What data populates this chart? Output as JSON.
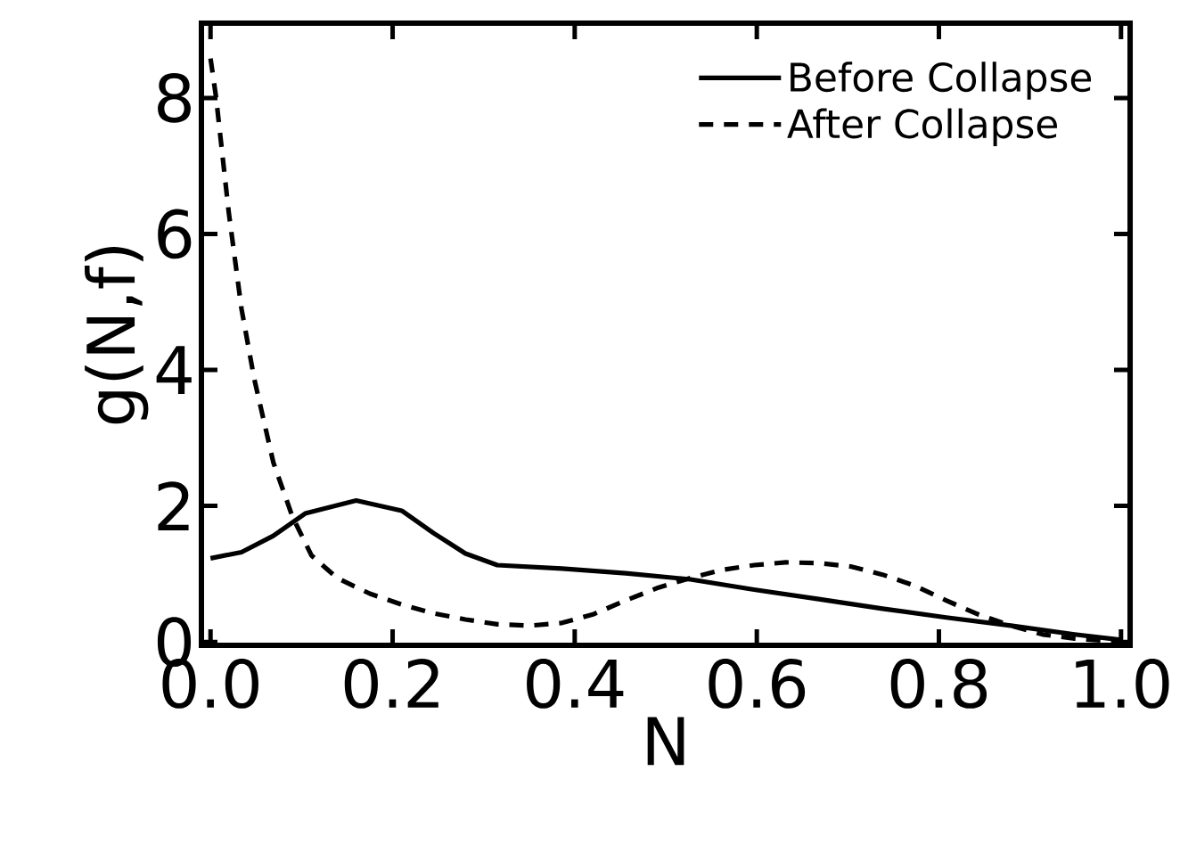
{
  "chart_data": {
    "type": "line",
    "xlabel": "N",
    "ylabel": "g(N,f)",
    "xlim": [
      -0.01,
      1.01
    ],
    "ylim": [
      -0.05,
      9.1
    ],
    "xticks": [
      {
        "value": 0,
        "label": "0.0"
      },
      {
        "value": 0.2,
        "label": "0.2"
      },
      {
        "value": 0.4,
        "label": "0.4"
      },
      {
        "value": 0.6,
        "label": "0.6"
      },
      {
        "value": 0.8,
        "label": "0.8"
      },
      {
        "value": 1,
        "label": "1.0"
      }
    ],
    "yticks": [
      0,
      2,
      4,
      6,
      8
    ],
    "grid": false,
    "legend": "top right",
    "marker": "none",
    "series": [
      {
        "name": "Before Collapse",
        "color": "#000000",
        "line_style": "solid",
        "x": [
          0,
          0.034,
          0.069,
          0.104,
          0.16,
          0.21,
          0.245,
          0.28,
          0.315,
          0.386,
          0.456,
          0.527,
          0.597,
          0.668,
          0.738,
          0.808,
          0.879,
          0.949,
          1.0
        ],
        "values": [
          1.23,
          1.32,
          1.56,
          1.89,
          2.08,
          1.93,
          1.6,
          1.3,
          1.13,
          1.08,
          1.01,
          0.92,
          0.77,
          0.63,
          0.49,
          0.36,
          0.24,
          0.11,
          0.03
        ]
      },
      {
        "name": "After Collapse",
        "color": "#000000",
        "line_style": "dashed",
        "x": [
          0,
          0.006,
          0.02,
          0.034,
          0.048,
          0.069,
          0.09,
          0.111,
          0.139,
          0.175,
          0.21,
          0.245,
          0.28,
          0.315,
          0.351,
          0.386,
          0.421,
          0.456,
          0.492,
          0.527,
          0.562,
          0.597,
          0.632,
          0.668,
          0.703,
          0.738,
          0.773,
          0.808,
          0.844,
          0.879,
          0.914,
          0.949,
          1.0
        ],
        "values": [
          8.58,
          8.02,
          6.32,
          4.9,
          3.87,
          2.64,
          1.84,
          1.27,
          0.94,
          0.71,
          0.55,
          0.42,
          0.33,
          0.26,
          0.24,
          0.28,
          0.41,
          0.61,
          0.8,
          0.94,
          1.06,
          1.13,
          1.17,
          1.16,
          1.11,
          0.99,
          0.83,
          0.61,
          0.4,
          0.24,
          0.11,
          0.05,
          0.0
        ]
      }
    ]
  }
}
